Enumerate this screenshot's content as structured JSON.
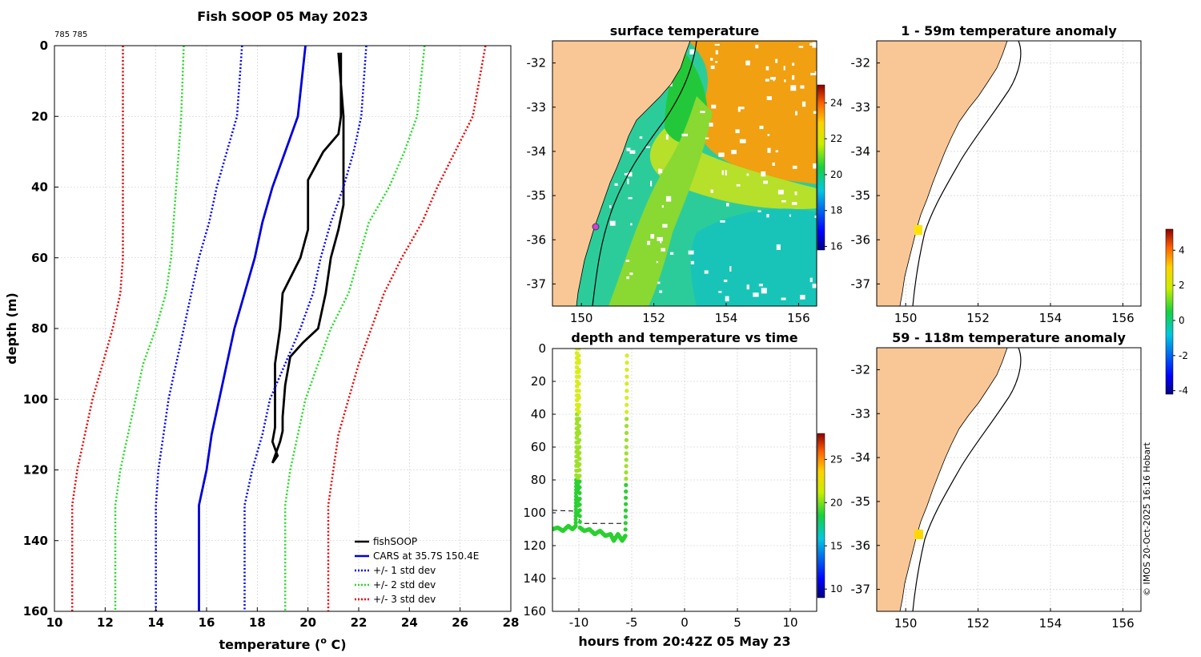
{
  "figure_title": "Fish SOOP 05 May 2023",
  "id_label": "785 785",
  "copyright": "© IMOS 20-Oct-2025 16:16 Hobart",
  "chart_data": [
    {
      "type": "line",
      "panel": "profile",
      "title": "Fish SOOP 05 May 2023",
      "xlabel": "temperature (",
      "xlabel_sup": "o",
      "xlabel_tail": " C)",
      "ylabel": "depth (m)",
      "xlim": [
        10,
        28
      ],
      "ylim": [
        0,
        160
      ],
      "y_reversed": true,
      "x_ticks": [
        10,
        12,
        14,
        16,
        18,
        20,
        22,
        24,
        26,
        28
      ],
      "y_ticks": [
        0,
        20,
        40,
        60,
        80,
        100,
        120,
        140,
        160
      ],
      "grid": true,
      "legend_position": "bottom-right",
      "series": [
        {
          "name": "fishSOOP",
          "style": "solid",
          "color": "#000000",
          "points": [
            [
              21.3,
              2
            ],
            [
              21.3,
              20
            ],
            [
              21.2,
              25
            ],
            [
              20.6,
              30
            ],
            [
              20.0,
              38
            ],
            [
              20.0,
              52
            ],
            [
              19.7,
              60
            ],
            [
              19.0,
              70
            ],
            [
              18.9,
              80
            ],
            [
              18.7,
              90
            ],
            [
              18.7,
              100
            ],
            [
              18.7,
              108
            ],
            [
              18.6,
              112
            ],
            [
              18.8,
              116
            ],
            [
              18.6,
              118
            ],
            [
              18.9,
              112
            ],
            [
              19.0,
              109
            ],
            [
              19.0,
              105
            ],
            [
              19.1,
              96
            ],
            [
              19.3,
              88
            ],
            [
              19.8,
              84
            ],
            [
              20.4,
              80
            ],
            [
              20.7,
              70
            ],
            [
              20.9,
              60
            ],
            [
              21.2,
              52
            ],
            [
              21.4,
              45
            ],
            [
              21.4,
              30
            ],
            [
              21.4,
              20
            ],
            [
              21.2,
              2
            ]
          ]
        },
        {
          "name": "CARS at 35.7S 150.4E",
          "style": "solid",
          "color": "#0000dd",
          "points": [
            [
              19.9,
              0
            ],
            [
              19.6,
              20
            ],
            [
              19.1,
              30
            ],
            [
              18.6,
              40
            ],
            [
              18.2,
              50
            ],
            [
              17.9,
              60
            ],
            [
              17.5,
              70
            ],
            [
              17.1,
              80
            ],
            [
              16.8,
              90
            ],
            [
              16.5,
              100
            ],
            [
              16.2,
              110
            ],
            [
              16.0,
              120
            ],
            [
              15.7,
              130
            ],
            [
              15.7,
              160
            ]
          ]
        },
        {
          "name": "+/- 1 std dev",
          "style": "dotted",
          "color": "#0000ff",
          "points_low": [
            [
              17.4,
              0
            ],
            [
              17.2,
              20
            ],
            [
              16.8,
              30
            ],
            [
              16.4,
              40
            ],
            [
              16.1,
              50
            ],
            [
              15.7,
              60
            ],
            [
              15.4,
              70
            ],
            [
              15.1,
              80
            ],
            [
              14.8,
              90
            ],
            [
              14.5,
              100
            ],
            [
              14.3,
              110
            ],
            [
              14.1,
              120
            ],
            [
              14.0,
              130
            ],
            [
              14.0,
              160
            ]
          ],
          "points_high": [
            [
              22.3,
              0
            ],
            [
              22.1,
              20
            ],
            [
              21.8,
              30
            ],
            [
              21.4,
              40
            ],
            [
              20.9,
              50
            ],
            [
              20.5,
              60
            ],
            [
              20.2,
              70
            ],
            [
              19.7,
              80
            ],
            [
              19.1,
              90
            ],
            [
              18.5,
              100
            ],
            [
              18.2,
              110
            ],
            [
              17.8,
              120
            ],
            [
              17.5,
              130
            ],
            [
              17.5,
              160
            ]
          ]
        },
        {
          "name": "+/- 2 std dev",
          "style": "dotted",
          "color": "#22dd22",
          "points_low": [
            [
              15.1,
              0
            ],
            [
              15.0,
              20
            ],
            [
              14.9,
              30
            ],
            [
              14.8,
              40
            ],
            [
              14.7,
              50
            ],
            [
              14.6,
              60
            ],
            [
              14.4,
              70
            ],
            [
              14.0,
              80
            ],
            [
              13.5,
              90
            ],
            [
              13.2,
              100
            ],
            [
              12.9,
              110
            ],
            [
              12.6,
              120
            ],
            [
              12.4,
              130
            ],
            [
              12.4,
              160
            ]
          ],
          "points_high": [
            [
              24.6,
              0
            ],
            [
              24.3,
              20
            ],
            [
              23.8,
              30
            ],
            [
              23.2,
              40
            ],
            [
              22.4,
              50
            ],
            [
              22.0,
              60
            ],
            [
              21.6,
              70
            ],
            [
              20.9,
              80
            ],
            [
              20.4,
              90
            ],
            [
              19.9,
              100
            ],
            [
              19.6,
              110
            ],
            [
              19.3,
              120
            ],
            [
              19.1,
              130
            ],
            [
              19.1,
              160
            ]
          ]
        },
        {
          "name": "+/- 3 std dev",
          "style": "dotted",
          "color": "#ee0000",
          "points_low": [
            [
              12.7,
              0
            ],
            [
              12.7,
              20
            ],
            [
              12.7,
              30
            ],
            [
              12.7,
              40
            ],
            [
              12.7,
              50
            ],
            [
              12.7,
              60
            ],
            [
              12.6,
              70
            ],
            [
              12.3,
              80
            ],
            [
              11.9,
              90
            ],
            [
              11.5,
              100
            ],
            [
              11.2,
              110
            ],
            [
              10.9,
              120
            ],
            [
              10.7,
              130
            ],
            [
              10.7,
              160
            ]
          ],
          "points_high": [
            [
              27.0,
              0
            ],
            [
              26.5,
              20
            ],
            [
              25.8,
              30
            ],
            [
              25.1,
              40
            ],
            [
              24.5,
              50
            ],
            [
              23.7,
              60
            ],
            [
              23.0,
              70
            ],
            [
              22.5,
              80
            ],
            [
              22.0,
              90
            ],
            [
              21.6,
              100
            ],
            [
              21.2,
              110
            ],
            [
              21.0,
              120
            ],
            [
              20.8,
              130
            ],
            [
              20.8,
              160
            ]
          ]
        }
      ]
    },
    {
      "type": "heatmap",
      "panel": "surface_map",
      "title": "surface temperature",
      "xlim": [
        149.2,
        156.5
      ],
      "ylim": [
        -37.5,
        -31.5
      ],
      "x_ticks": [
        150,
        152,
        154,
        156
      ],
      "y_ticks": [
        -32,
        -33,
        -34,
        -35,
        -36,
        -37
      ],
      "colorbar": {
        "min": 15.8,
        "max": 25.0,
        "ticks": [
          16,
          18,
          20,
          22,
          24
        ]
      },
      "marker": {
        "lon": 150.4,
        "lat": -35.7
      }
    },
    {
      "type": "scatter",
      "panel": "time_series",
      "title": "depth and temperature vs time",
      "xlabel": "hours from 20:42Z 05 May 23",
      "xlim": [
        -12.5,
        12.5
      ],
      "ylim": [
        0,
        160
      ],
      "y_reversed": true,
      "x_ticks": [
        -10,
        -5,
        0,
        5,
        10
      ],
      "y_ticks": [
        0,
        20,
        40,
        60,
        80,
        100,
        120,
        140,
        160
      ],
      "dashed_reference": [
        [
          -12.5,
          98.5
        ],
        [
          -10.3,
          99
        ],
        [
          -9.8,
          106.5
        ],
        [
          -5.5,
          106.5
        ]
      ],
      "colorbar": {
        "min": 9,
        "max": 28,
        "ticks": [
          10,
          15,
          20,
          25
        ]
      },
      "track": [
        [
          -12.5,
          110
        ],
        [
          -12,
          109
        ],
        [
          -11.5,
          111
        ],
        [
          -11,
          108
        ],
        [
          -10.6,
          110
        ],
        [
          -10.3,
          108
        ],
        [
          -10.25,
          80
        ],
        [
          -10.2,
          40
        ],
        [
          -10.2,
          0
        ],
        [
          -10.15,
          40
        ],
        [
          -10.1,
          100
        ],
        [
          -10.0,
          0
        ],
        [
          -9.95,
          60
        ],
        [
          -9.9,
          109
        ],
        [
          -9.5,
          111
        ],
        [
          -9,
          110
        ],
        [
          -8.5,
          113
        ],
        [
          -8,
          111
        ],
        [
          -7.5,
          114
        ],
        [
          -7,
          113
        ],
        [
          -6.7,
          117
        ],
        [
          -6.3,
          113
        ],
        [
          -5.9,
          117
        ],
        [
          -5.6,
          114
        ],
        [
          -5.5,
          60
        ],
        [
          -5.45,
          0
        ]
      ]
    },
    {
      "type": "heatmap",
      "panel": "anomaly_1_59m",
      "title": "1 - 59m temperature anomaly",
      "xlim": [
        149.2,
        156.5
      ],
      "ylim": [
        -37.5,
        -31.5
      ],
      "x_ticks": [
        150,
        152,
        154,
        156
      ],
      "y_ticks": [
        -32,
        -33,
        -34,
        -35,
        -36,
        -37
      ],
      "marker": {
        "lon": 150.35,
        "lat": -35.75,
        "anomaly": 2.0
      }
    },
    {
      "type": "heatmap",
      "panel": "anomaly_59_118m",
      "title": "59 - 118m temperature anomaly",
      "xlim": [
        149.2,
        156.5
      ],
      "ylim": [
        -37.5,
        -31.5
      ],
      "x_ticks": [
        150,
        152,
        154,
        156
      ],
      "y_ticks": [
        -32,
        -33,
        -34,
        -35,
        -36,
        -37
      ],
      "marker": {
        "lon": 150.3,
        "lat": -35.85,
        "anomaly": 2.2
      },
      "colorbar": {
        "min": -4.2,
        "max": 5.2,
        "ticks": [
          -4,
          -2,
          0,
          2,
          4
        ]
      }
    }
  ],
  "colors": {
    "land": "#f9c796",
    "axis": "#000000",
    "grid": "#c8c8c8"
  }
}
